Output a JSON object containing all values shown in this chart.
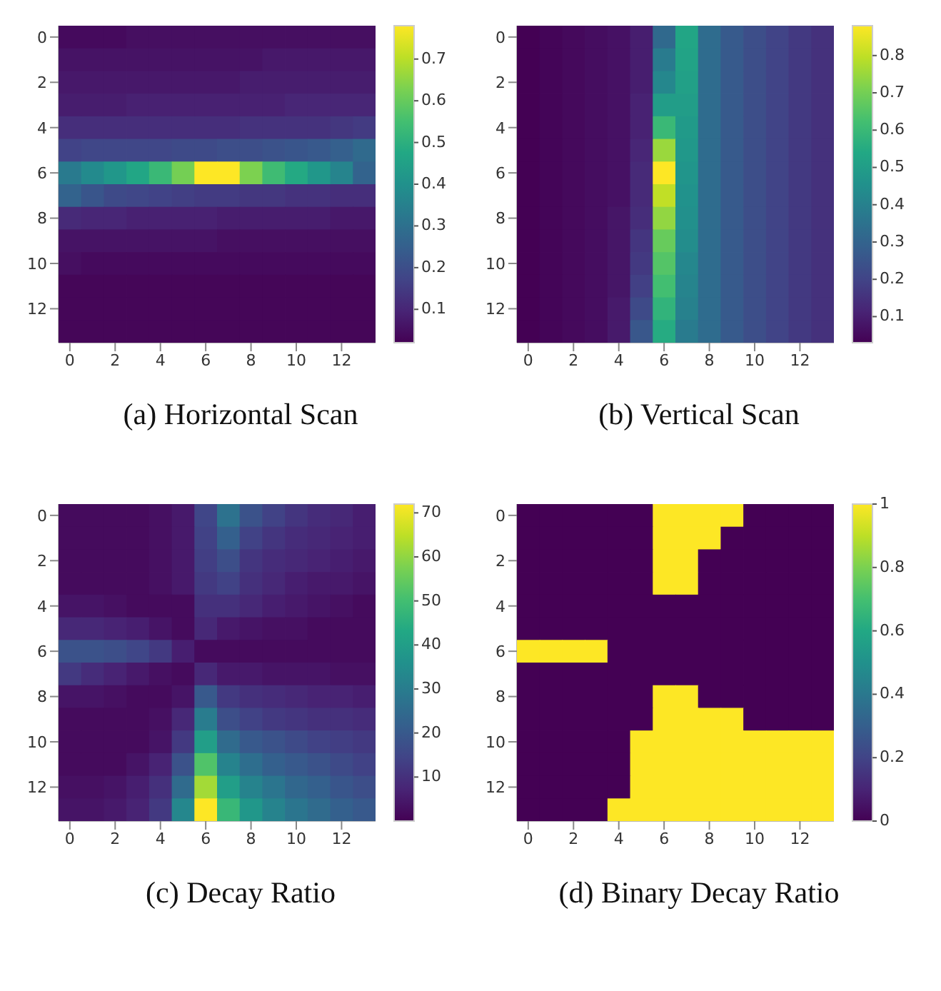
{
  "chart_data": [
    {
      "type": "heatmap",
      "title": "(a) Horizontal Scan",
      "categories": [
        "0",
        null,
        "2",
        null,
        "4",
        null,
        "6",
        null,
        "8",
        null,
        "10",
        null,
        "12",
        null
      ],
      "y_categories": [
        "0",
        null,
        "2",
        null,
        "4",
        null,
        "6",
        null,
        "8",
        null,
        "10",
        null,
        "12",
        null
      ],
      "cells": [
        [
          0.04,
          0.04,
          0.04,
          0.05,
          0.05,
          0.05,
          0.05,
          0.05,
          0.05,
          0.05,
          0.05,
          0.05,
          0.05,
          0.05
        ],
        [
          0.06,
          0.06,
          0.06,
          0.06,
          0.06,
          0.06,
          0.06,
          0.06,
          0.06,
          0.07,
          0.07,
          0.07,
          0.07,
          0.07
        ],
        [
          0.07,
          0.07,
          0.07,
          0.07,
          0.07,
          0.07,
          0.07,
          0.07,
          0.08,
          0.08,
          0.08,
          0.08,
          0.08,
          0.08
        ],
        [
          0.08,
          0.08,
          0.08,
          0.09,
          0.09,
          0.09,
          0.09,
          0.09,
          0.09,
          0.09,
          0.1,
          0.1,
          0.1,
          0.1
        ],
        [
          0.12,
          0.12,
          0.12,
          0.12,
          0.12,
          0.12,
          0.12,
          0.12,
          0.13,
          0.13,
          0.13,
          0.13,
          0.14,
          0.15
        ],
        [
          0.17,
          0.18,
          0.18,
          0.18,
          0.18,
          0.19,
          0.19,
          0.2,
          0.2,
          0.21,
          0.22,
          0.23,
          0.25,
          0.28
        ],
        [
          0.33,
          0.38,
          0.42,
          0.47,
          0.53,
          0.62,
          0.78,
          0.78,
          0.63,
          0.54,
          0.48,
          0.42,
          0.36,
          0.26
        ],
        [
          0.26,
          0.22,
          0.19,
          0.18,
          0.17,
          0.16,
          0.15,
          0.15,
          0.14,
          0.14,
          0.13,
          0.13,
          0.12,
          0.12
        ],
        [
          0.11,
          0.1,
          0.1,
          0.09,
          0.09,
          0.09,
          0.09,
          0.08,
          0.08,
          0.08,
          0.08,
          0.08,
          0.07,
          0.07
        ],
        [
          0.06,
          0.06,
          0.06,
          0.06,
          0.06,
          0.06,
          0.06,
          0.05,
          0.05,
          0.05,
          0.05,
          0.05,
          0.05,
          0.05
        ],
        [
          0.05,
          0.04,
          0.04,
          0.04,
          0.04,
          0.04,
          0.04,
          0.04,
          0.04,
          0.04,
          0.04,
          0.04,
          0.04,
          0.04
        ],
        [
          0.03,
          0.03,
          0.03,
          0.03,
          0.03,
          0.03,
          0.03,
          0.03,
          0.03,
          0.03,
          0.03,
          0.03,
          0.03,
          0.03
        ],
        [
          0.03,
          0.03,
          0.03,
          0.03,
          0.03,
          0.03,
          0.03,
          0.03,
          0.03,
          0.03,
          0.03,
          0.03,
          0.03,
          0.03
        ],
        [
          0.03,
          0.03,
          0.03,
          0.03,
          0.03,
          0.03,
          0.03,
          0.03,
          0.03,
          0.03,
          0.03,
          0.03,
          0.03,
          0.03
        ]
      ],
      "clim": [
        0.02,
        0.78
      ],
      "cticks": [
        0.1,
        0.2,
        0.3,
        0.4,
        0.5,
        0.6,
        0.7
      ]
    },
    {
      "type": "heatmap",
      "title": "(b) Vertical Scan",
      "categories": [
        "0",
        null,
        "2",
        null,
        "4",
        null,
        "6",
        null,
        "8",
        null,
        "10",
        null,
        "12",
        null
      ],
      "y_categories": [
        "0",
        null,
        "2",
        null,
        "4",
        null,
        "6",
        null,
        "8",
        null,
        "10",
        null,
        "12",
        null
      ],
      "cells": [
        [
          0.03,
          0.04,
          0.05,
          0.06,
          0.07,
          0.1,
          0.32,
          0.53,
          0.33,
          0.27,
          0.23,
          0.2,
          0.17,
          0.15
        ],
        [
          0.03,
          0.04,
          0.05,
          0.06,
          0.07,
          0.1,
          0.38,
          0.52,
          0.33,
          0.27,
          0.23,
          0.2,
          0.17,
          0.15
        ],
        [
          0.03,
          0.04,
          0.05,
          0.06,
          0.07,
          0.1,
          0.42,
          0.51,
          0.33,
          0.27,
          0.23,
          0.2,
          0.17,
          0.15
        ],
        [
          0.03,
          0.04,
          0.05,
          0.06,
          0.07,
          0.11,
          0.5,
          0.5,
          0.33,
          0.27,
          0.23,
          0.2,
          0.17,
          0.15
        ],
        [
          0.03,
          0.04,
          0.05,
          0.06,
          0.07,
          0.11,
          0.6,
          0.49,
          0.33,
          0.27,
          0.23,
          0.2,
          0.17,
          0.15
        ],
        [
          0.03,
          0.04,
          0.05,
          0.06,
          0.07,
          0.12,
          0.75,
          0.48,
          0.33,
          0.27,
          0.23,
          0.2,
          0.17,
          0.15
        ],
        [
          0.03,
          0.04,
          0.05,
          0.06,
          0.07,
          0.13,
          0.88,
          0.47,
          0.33,
          0.27,
          0.23,
          0.2,
          0.17,
          0.15
        ],
        [
          0.03,
          0.04,
          0.05,
          0.06,
          0.07,
          0.13,
          0.8,
          0.46,
          0.33,
          0.27,
          0.23,
          0.2,
          0.17,
          0.15
        ],
        [
          0.03,
          0.04,
          0.05,
          0.06,
          0.08,
          0.14,
          0.74,
          0.45,
          0.33,
          0.27,
          0.23,
          0.2,
          0.17,
          0.15
        ],
        [
          0.03,
          0.04,
          0.05,
          0.06,
          0.08,
          0.16,
          0.68,
          0.44,
          0.33,
          0.27,
          0.23,
          0.2,
          0.17,
          0.15
        ],
        [
          0.03,
          0.04,
          0.05,
          0.06,
          0.08,
          0.17,
          0.65,
          0.42,
          0.33,
          0.27,
          0.23,
          0.2,
          0.17,
          0.15
        ],
        [
          0.03,
          0.04,
          0.05,
          0.06,
          0.08,
          0.19,
          0.62,
          0.41,
          0.33,
          0.27,
          0.23,
          0.2,
          0.17,
          0.15
        ],
        [
          0.03,
          0.04,
          0.05,
          0.06,
          0.09,
          0.22,
          0.58,
          0.4,
          0.33,
          0.27,
          0.23,
          0.2,
          0.17,
          0.15
        ],
        [
          0.03,
          0.04,
          0.05,
          0.06,
          0.09,
          0.26,
          0.55,
          0.38,
          0.33,
          0.27,
          0.23,
          0.2,
          0.17,
          0.15
        ]
      ],
      "clim": [
        0.03,
        0.88
      ],
      "cticks": [
        0.1,
        0.2,
        0.3,
        0.4,
        0.5,
        0.6,
        0.7,
        0.8
      ]
    },
    {
      "type": "heatmap",
      "title": "(c) Decay Ratio",
      "categories": [
        "0",
        null,
        "2",
        null,
        "4",
        null,
        "6",
        null,
        "8",
        null,
        "10",
        null,
        "12",
        null
      ],
      "y_categories": [
        "0",
        null,
        "2",
        null,
        "4",
        null,
        "6",
        null,
        "8",
        null,
        "10",
        null,
        "12",
        null
      ],
      "cells": [
        [
          2,
          2,
          2,
          2,
          3,
          5,
          15,
          27,
          18,
          14,
          11,
          9,
          8,
          6
        ],
        [
          2,
          2,
          2,
          2,
          3,
          5,
          14,
          22,
          14,
          11,
          9,
          8,
          7,
          6
        ],
        [
          2,
          2,
          2,
          2,
          3,
          5,
          13,
          17,
          11,
          9,
          8,
          7,
          6,
          5
        ],
        [
          2,
          2,
          2,
          2,
          3,
          5,
          12,
          14,
          10,
          8,
          6,
          5,
          5,
          4
        ],
        [
          4,
          4,
          3,
          2,
          2,
          2,
          10,
          10,
          8,
          6,
          5,
          4,
          3,
          2
        ],
        [
          8,
          8,
          7,
          6,
          4,
          2,
          8,
          5,
          4,
          3,
          3,
          2,
          2,
          2
        ],
        [
          18,
          18,
          17,
          15,
          12,
          6,
          2,
          2,
          2,
          2,
          2,
          2,
          2,
          2
        ],
        [
          12,
          9,
          7,
          5,
          3,
          2,
          8,
          5,
          5,
          4,
          4,
          4,
          3,
          3
        ],
        [
          4,
          4,
          3,
          2,
          2,
          4,
          20,
          12,
          10,
          9,
          8,
          7,
          7,
          6
        ],
        [
          2,
          2,
          2,
          2,
          3,
          8,
          30,
          17,
          14,
          12,
          11,
          10,
          10,
          9
        ],
        [
          2,
          2,
          2,
          2,
          4,
          12,
          40,
          25,
          20,
          18,
          16,
          14,
          13,
          12
        ],
        [
          2,
          2,
          2,
          4,
          7,
          18,
          52,
          32,
          26,
          22,
          20,
          18,
          16,
          14
        ],
        [
          3,
          3,
          4,
          6,
          10,
          25,
          62,
          40,
          32,
          28,
          24,
          22,
          19,
          17
        ],
        [
          4,
          4,
          5,
          7,
          12,
          33,
          72,
          48,
          38,
          32,
          28,
          25,
          22,
          20
        ]
      ],
      "clim": [
        0,
        72
      ],
      "cticks": [
        10,
        20,
        30,
        40,
        50,
        60,
        70
      ]
    },
    {
      "type": "heatmap",
      "title": "(d) Binary Decay Ratio",
      "categories": [
        "0",
        null,
        "2",
        null,
        "4",
        null,
        "6",
        null,
        "8",
        null,
        "10",
        null,
        "12",
        null
      ],
      "y_categories": [
        "0",
        null,
        "2",
        null,
        "4",
        null,
        "6",
        null,
        "8",
        null,
        "10",
        null,
        "12",
        null
      ],
      "cells": [
        [
          0,
          0,
          0,
          0,
          0,
          0,
          1,
          1,
          1,
          1,
          0,
          0,
          0,
          0
        ],
        [
          0,
          0,
          0,
          0,
          0,
          0,
          1,
          1,
          1,
          0,
          0,
          0,
          0,
          0
        ],
        [
          0,
          0,
          0,
          0,
          0,
          0,
          1,
          1,
          0,
          0,
          0,
          0,
          0,
          0
        ],
        [
          0,
          0,
          0,
          0,
          0,
          0,
          1,
          1,
          0,
          0,
          0,
          0,
          0,
          0
        ],
        [
          0,
          0,
          0,
          0,
          0,
          0,
          0,
          0,
          0,
          0,
          0,
          0,
          0,
          0
        ],
        [
          0,
          0,
          0,
          0,
          0,
          0,
          0,
          0,
          0,
          0,
          0,
          0,
          0,
          0
        ],
        [
          1,
          1,
          1,
          1,
          0,
          0,
          0,
          0,
          0,
          0,
          0,
          0,
          0,
          0
        ],
        [
          0,
          0,
          0,
          0,
          0,
          0,
          0,
          0,
          0,
          0,
          0,
          0,
          0,
          0
        ],
        [
          0,
          0,
          0,
          0,
          0,
          0,
          1,
          1,
          0,
          0,
          0,
          0,
          0,
          0
        ],
        [
          0,
          0,
          0,
          0,
          0,
          0,
          1,
          1,
          1,
          1,
          0,
          0,
          0,
          0
        ],
        [
          0,
          0,
          0,
          0,
          0,
          1,
          1,
          1,
          1,
          1,
          1,
          1,
          1,
          1
        ],
        [
          0,
          0,
          0,
          0,
          0,
          1,
          1,
          1,
          1,
          1,
          1,
          1,
          1,
          1
        ],
        [
          0,
          0,
          0,
          0,
          0,
          1,
          1,
          1,
          1,
          1,
          1,
          1,
          1,
          1
        ],
        [
          0,
          0,
          0,
          0,
          1,
          1,
          1,
          1,
          1,
          1,
          1,
          1,
          1,
          1
        ]
      ],
      "clim": [
        0,
        1
      ],
      "cticks": [
        0,
        0.2,
        0.4,
        0.6,
        0.8,
        1
      ]
    }
  ]
}
